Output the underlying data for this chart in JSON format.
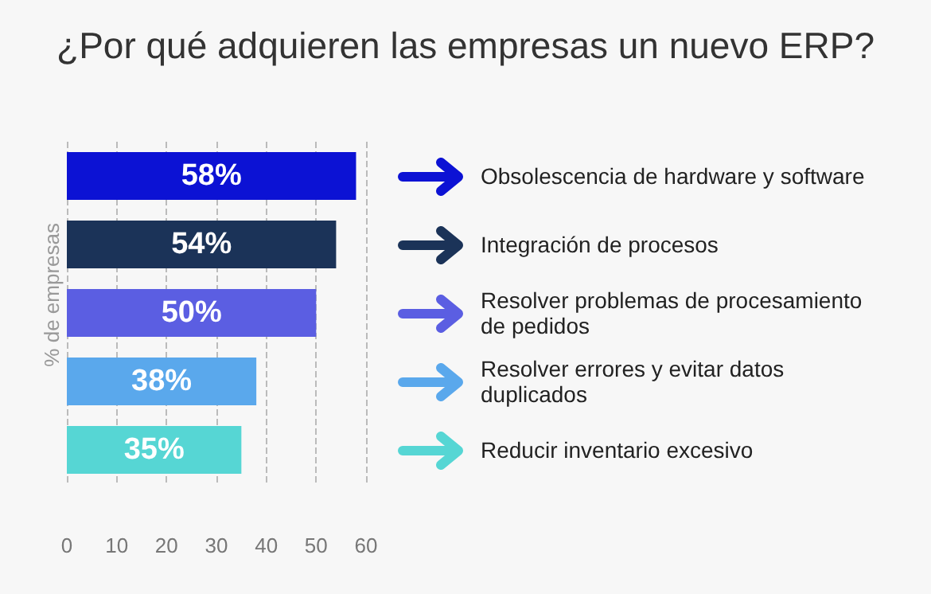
{
  "chart_data": {
    "type": "bar",
    "orientation": "horizontal",
    "title": "¿Por qué adquieren las empresas un nuevo ERP?",
    "ylabel": "% de empresas",
    "categories": [
      "Obsolescencia de hardware y software",
      "Integración de procesos",
      "Resolver problemas de procesamiento de pedidos",
      "Resolver errores y evitar datos duplicados",
      "Reducir inventario excesivo"
    ],
    "values": [
      58,
      54,
      50,
      38,
      35
    ],
    "value_labels": [
      "58%",
      "54%",
      "50%",
      "38%",
      "35%"
    ],
    "colors": [
      "#0c12d4",
      "#1b3358",
      "#5b5ee2",
      "#5aa8ec",
      "#56d6d4"
    ],
    "xlim": [
      0,
      60
    ],
    "xticks": [
      0,
      10,
      20,
      30,
      40,
      50,
      60
    ],
    "grid": "x"
  }
}
